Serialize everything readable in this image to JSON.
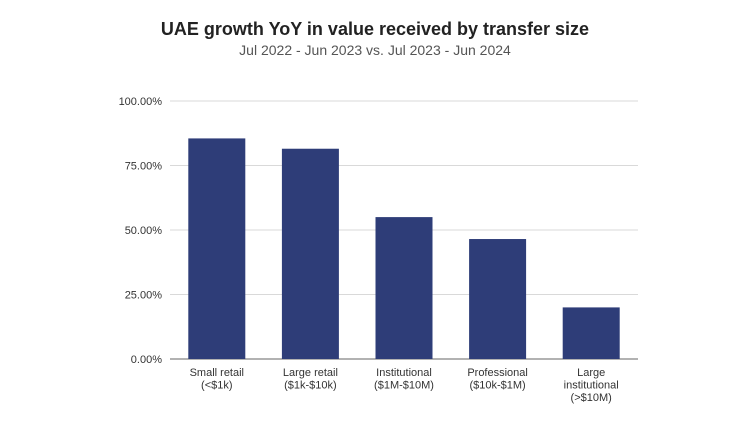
{
  "chart_data": {
    "type": "bar",
    "title": "UAE growth YoY in value received by transfer size",
    "subtitle": "Jul 2022 - Jun 2023 vs. Jul 2023 - Jun 2024",
    "xlabel": "",
    "ylabel": "",
    "categories": [
      [
        "Small retail",
        "(<$1k)"
      ],
      [
        "Large retail",
        "($1k-$10k)"
      ],
      [
        "Institutional",
        "($1M-$10M)"
      ],
      [
        "Professional",
        "($10k-$1M)"
      ],
      [
        "Large",
        "institutional",
        "(>$10M)"
      ]
    ],
    "values": [
      85.5,
      81.5,
      55.0,
      46.5,
      20.0
    ],
    "ylim": [
      0,
      100
    ],
    "yticks": [
      0,
      25,
      50,
      75,
      100
    ],
    "ytick_labels": [
      "0.00%",
      "25.00%",
      "50.00%",
      "75.00%",
      "100.00%"
    ],
    "grid": true,
    "legend": "none",
    "bar_color": "#2e3d78",
    "grid_color": "#d9d9d9"
  }
}
